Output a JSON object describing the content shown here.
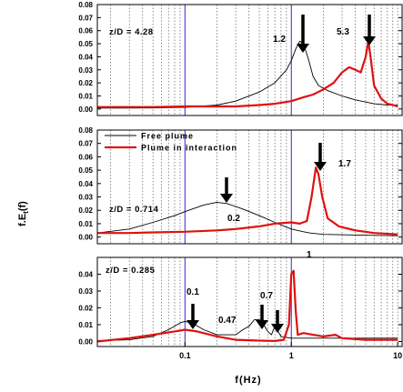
{
  "figure": {
    "ylabel": "f.E",
    "ylabel_sub": "t",
    "ylabel_tail": "(f)",
    "xlabel": "f(Hz)",
    "x_ticks": [
      "0.1",
      "1",
      "10"
    ]
  },
  "chart_data": [
    {
      "type": "line",
      "panel": "top",
      "annotation": "z/D = 4.28",
      "xscale": "log",
      "xlim": [
        0.015,
        11
      ],
      "ylim": [
        -0.005,
        0.08
      ],
      "y_ticks": [
        "0.00",
        "0.01",
        "0.02",
        "0.03",
        "0.04",
        "0.05",
        "0.06",
        "0.07",
        "0.08"
      ],
      "peak_labels": [
        "1.2",
        "5.3"
      ],
      "series": [
        {
          "role": "free",
          "points": [
            [
              0.015,
              0.0007
            ],
            [
              0.05,
              0.0008
            ],
            [
              0.1,
              0.0012
            ],
            [
              0.2,
              0.003
            ],
            [
              0.3,
              0.006
            ],
            [
              0.5,
              0.013
            ],
            [
              0.7,
              0.02
            ],
            [
              0.9,
              0.03
            ],
            [
              1.0,
              0.037
            ],
            [
              1.1,
              0.046
            ],
            [
              1.2,
              0.052
            ],
            [
              1.3,
              0.05
            ],
            [
              1.45,
              0.038
            ],
            [
              1.6,
              0.025
            ],
            [
              1.8,
              0.018
            ],
            [
              2.2,
              0.014
            ],
            [
              3,
              0.01
            ],
            [
              4,
              0.007
            ],
            [
              6,
              0.004
            ],
            [
              8,
              0.003
            ],
            [
              10,
              0.003
            ]
          ]
        },
        {
          "role": "interaction",
          "points": [
            [
              0.015,
              0.0015
            ],
            [
              0.05,
              0.0015
            ],
            [
              0.1,
              0.002
            ],
            [
              0.3,
              0.002
            ],
            [
              0.5,
              0.003
            ],
            [
              0.7,
              0.004
            ],
            [
              1.0,
              0.006
            ],
            [
              1.3,
              0.009
            ],
            [
              1.6,
              0.011
            ],
            [
              2,
              0.015
            ],
            [
              2.5,
              0.02
            ],
            [
              3,
              0.028
            ],
            [
              3.5,
              0.032
            ],
            [
              4,
              0.03
            ],
            [
              4.5,
              0.028
            ],
            [
              5,
              0.04
            ],
            [
              5.3,
              0.052
            ],
            [
              5.6,
              0.038
            ],
            [
              6,
              0.018
            ],
            [
              7,
              0.008
            ],
            [
              8,
              0.004
            ],
            [
              9,
              0.003
            ],
            [
              10,
              0.002
            ]
          ]
        }
      ]
    },
    {
      "type": "line",
      "panel": "middle",
      "annotation": "z/D = 0.714",
      "xscale": "log",
      "xlim": [
        0.015,
        11
      ],
      "ylim": [
        -0.005,
        0.08
      ],
      "y_ticks": [
        "0.00",
        "0.01",
        "0.02",
        "0.03",
        "0.04",
        "0.05",
        "0.06",
        "0.07",
        "0.08"
      ],
      "peak_labels": [
        "0.2",
        "1.7"
      ],
      "legend": [
        "Free plume",
        "Plume in interaction"
      ],
      "series": [
        {
          "name": "Free plume",
          "role": "free",
          "points": [
            [
              0.015,
              0.003
            ],
            [
              0.03,
              0.006
            ],
            [
              0.05,
              0.011
            ],
            [
              0.08,
              0.016
            ],
            [
              0.1,
              0.019
            ],
            [
              0.15,
              0.024
            ],
            [
              0.2,
              0.026
            ],
            [
              0.25,
              0.025
            ],
            [
              0.35,
              0.021
            ],
            [
              0.5,
              0.016
            ],
            [
              0.7,
              0.011
            ],
            [
              1.0,
              0.006
            ],
            [
              1.3,
              0.004
            ],
            [
              1.5,
              0.003
            ],
            [
              2,
              0.002
            ],
            [
              4,
              0.0015
            ],
            [
              10,
              0.001
            ]
          ]
        },
        {
          "name": "Plume in interaction",
          "role": "interaction",
          "points": [
            [
              0.015,
              0.003
            ],
            [
              0.03,
              0.003
            ],
            [
              0.05,
              0.0035
            ],
            [
              0.1,
              0.004
            ],
            [
              0.2,
              0.005
            ],
            [
              0.3,
              0.006
            ],
            [
              0.5,
              0.008
            ],
            [
              0.7,
              0.01
            ],
            [
              1.0,
              0.011
            ],
            [
              1.2,
              0.01
            ],
            [
              1.4,
              0.012
            ],
            [
              1.55,
              0.03
            ],
            [
              1.7,
              0.052
            ],
            [
              1.8,
              0.047
            ],
            [
              1.95,
              0.03
            ],
            [
              2.2,
              0.014
            ],
            [
              2.8,
              0.008
            ],
            [
              4,
              0.005
            ],
            [
              6,
              0.003
            ],
            [
              10,
              0.002
            ]
          ]
        }
      ]
    },
    {
      "type": "line",
      "panel": "bottom",
      "annotation": "z/D = 0.285",
      "xscale": "log",
      "xlim": [
        0.015,
        11
      ],
      "ylim": [
        -0.003,
        0.05
      ],
      "y_ticks": [
        "0.00",
        "0.01",
        "0.02",
        "0.03",
        "0.04"
      ],
      "peak_labels": [
        "0.1",
        "0.47",
        "0.7",
        "1"
      ],
      "series": [
        {
          "role": "free",
          "points": [
            [
              0.015,
              0.0005
            ],
            [
              0.03,
              0.001
            ],
            [
              0.05,
              0.003
            ],
            [
              0.07,
              0.007
            ],
            [
              0.09,
              0.011
            ],
            [
              0.1,
              0.012
            ],
            [
              0.12,
              0.0105
            ],
            [
              0.15,
              0.007
            ],
            [
              0.2,
              0.004
            ],
            [
              0.3,
              0.004
            ],
            [
              0.35,
              0.007
            ],
            [
              0.4,
              0.009
            ],
            [
              0.45,
              0.013
            ],
            [
              0.5,
              0.013
            ],
            [
              0.55,
              0.01
            ],
            [
              0.6,
              0.006
            ],
            [
              0.65,
              0.004
            ],
            [
              0.7,
              0.009
            ],
            [
              0.75,
              0.006
            ],
            [
              0.8,
              0.003
            ],
            [
              1,
              0.002
            ],
            [
              2,
              0.002
            ],
            [
              5,
              0.002
            ],
            [
              10,
              0.002
            ]
          ]
        },
        {
          "role": "interaction",
          "points": [
            [
              0.015,
              0.0
            ],
            [
              0.03,
              0.002
            ],
            [
              0.05,
              0.004
            ],
            [
              0.08,
              0.006
            ],
            [
              0.1,
              0.007
            ],
            [
              0.13,
              0.006
            ],
            [
              0.2,
              0.003
            ],
            [
              0.3,
              0.001
            ],
            [
              0.5,
              0.0005
            ],
            [
              0.7,
              0.0003
            ],
            [
              0.85,
              0.001
            ],
            [
              0.95,
              0.01
            ],
            [
              1.0,
              0.04
            ],
            [
              1.05,
              0.042
            ],
            [
              1.1,
              0.018
            ],
            [
              1.15,
              0.004
            ],
            [
              1.3,
              0.005
            ],
            [
              1.6,
              0.004
            ],
            [
              2,
              0.003
            ],
            [
              2.6,
              0.004
            ],
            [
              3,
              0.002
            ],
            [
              5,
              0.001
            ],
            [
              10,
              0.001
            ]
          ]
        }
      ]
    }
  ]
}
